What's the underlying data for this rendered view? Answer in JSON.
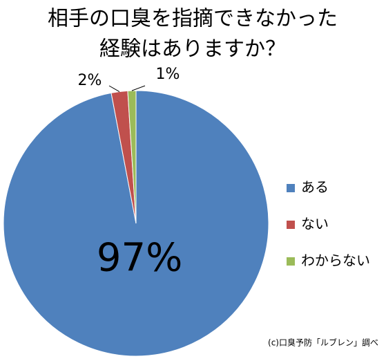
{
  "chart_data": {
    "type": "pie",
    "title": [
      "相手の口臭を指摘できなかった",
      "経験はありますか？"
    ],
    "categories": [
      "ある",
      "ない",
      "わからない"
    ],
    "values": [
      97,
      2,
      1
    ],
    "value_labels": [
      "97%",
      "2%",
      "1%"
    ],
    "colors": [
      "#4f81bd",
      "#c0504d",
      "#9bbb59"
    ],
    "legend": "right",
    "source": "(c)口臭予防「ルブレン」調べ"
  }
}
